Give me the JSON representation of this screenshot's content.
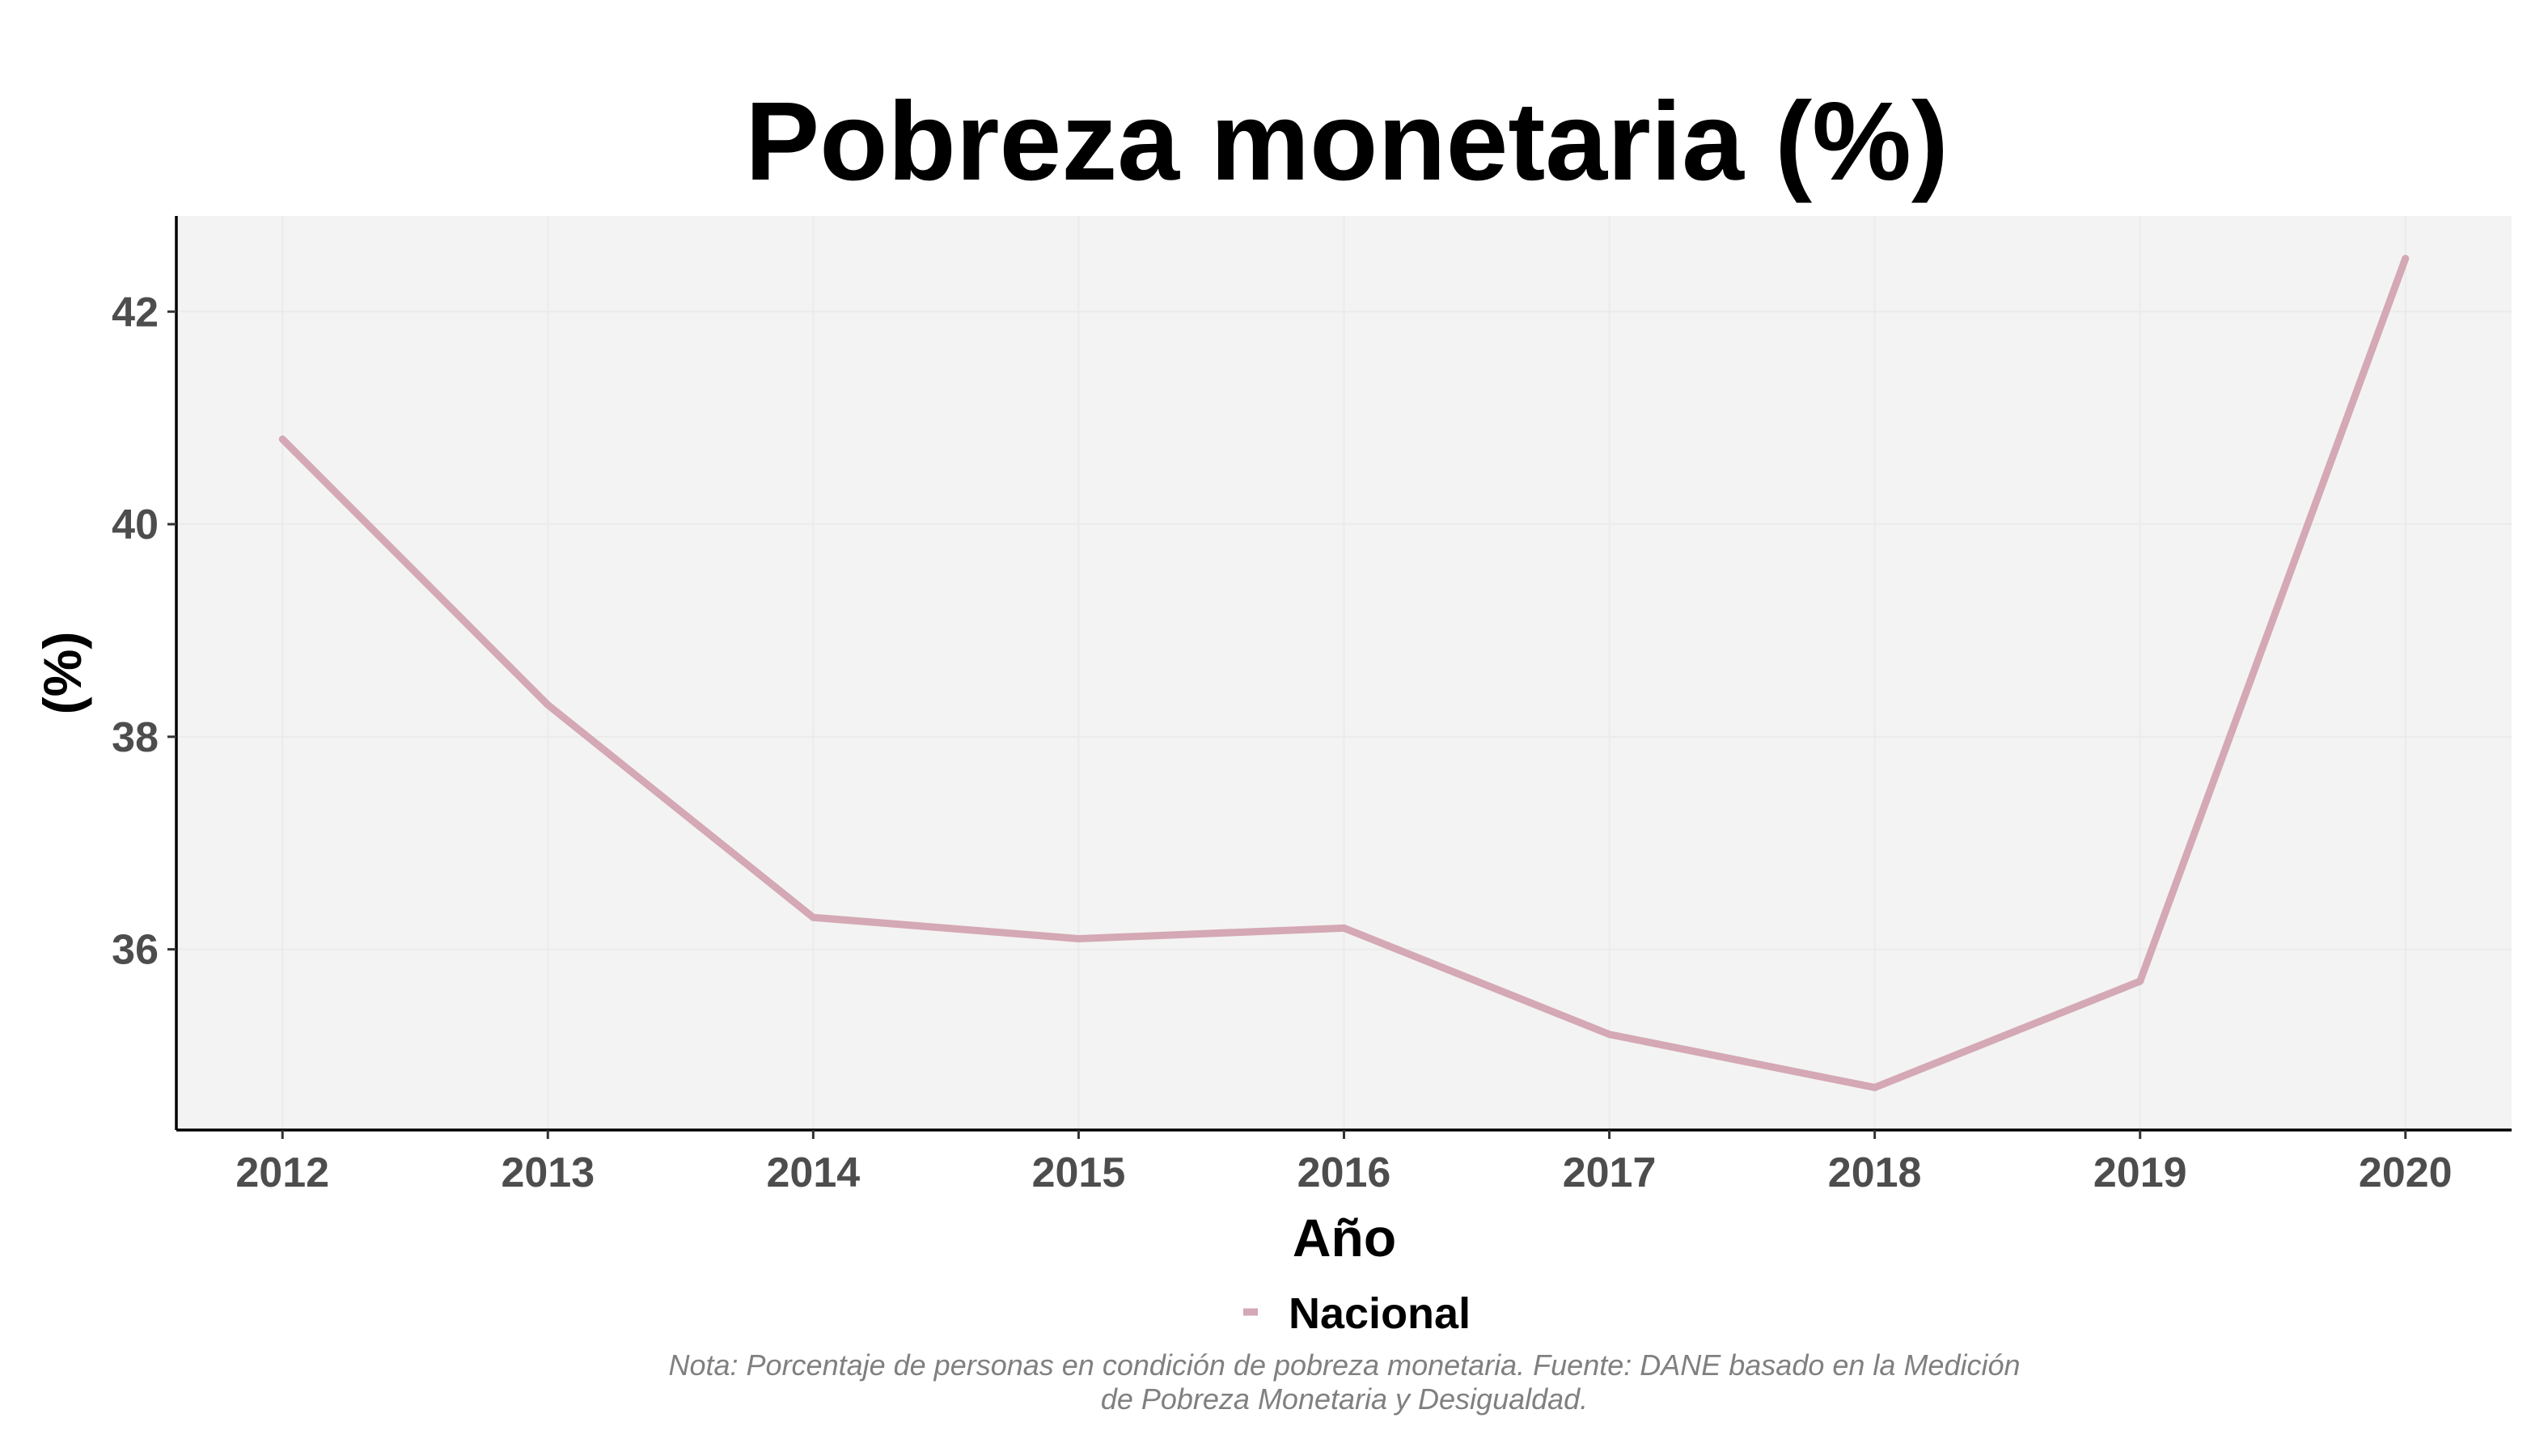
{
  "chart_data": {
    "type": "line",
    "title": "Pobreza monetaria (%)",
    "xlabel": "Año",
    "ylabel": "(%)",
    "x": [
      2012,
      2013,
      2014,
      2015,
      2016,
      2017,
      2018,
      2019,
      2020
    ],
    "x_tick_labels": [
      "2012",
      "2013",
      "2014",
      "2015",
      "2016",
      "2017",
      "2018",
      "2019",
      "2020"
    ],
    "y_ticks": [
      36,
      38,
      40,
      42
    ],
    "y_tick_labels": [
      "36",
      "38",
      "40",
      "42"
    ],
    "ylim": [
      34.3,
      42.9
    ],
    "grid": true,
    "legend_position": "bottom",
    "series": [
      {
        "name": "Nacional",
        "color": "#d4a8b4",
        "values": [
          40.8,
          38.3,
          36.3,
          36.1,
          36.2,
          35.2,
          34.7,
          35.7,
          42.5
        ]
      }
    ],
    "caption": [
      "Nota: Porcentaje de personas en condición de pobreza monetaria. Fuente: DANE basado en la Medición",
      "de Pobreza Monetaria y Desigualdad."
    ]
  }
}
